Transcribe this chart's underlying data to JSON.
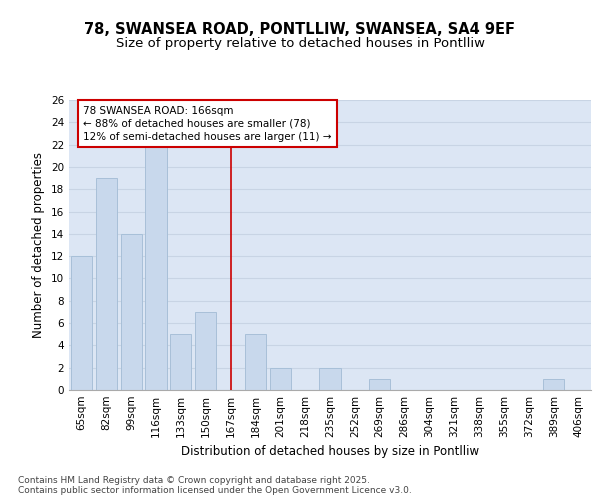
{
  "title_line1": "78, SWANSEA ROAD, PONTLLIW, SWANSEA, SA4 9EF",
  "title_line2": "Size of property relative to detached houses in Pontlliw",
  "xlabel": "Distribution of detached houses by size in Pontlliw",
  "ylabel": "Number of detached properties",
  "categories": [
    "65sqm",
    "82sqm",
    "99sqm",
    "116sqm",
    "133sqm",
    "150sqm",
    "167sqm",
    "184sqm",
    "201sqm",
    "218sqm",
    "235sqm",
    "252sqm",
    "269sqm",
    "286sqm",
    "304sqm",
    "321sqm",
    "338sqm",
    "355sqm",
    "372sqm",
    "389sqm",
    "406sqm"
  ],
  "values": [
    12,
    19,
    14,
    22,
    5,
    7,
    0,
    5,
    2,
    0,
    2,
    0,
    1,
    0,
    0,
    0,
    0,
    0,
    0,
    1,
    0
  ],
  "bar_color": "#c8d8ec",
  "bar_edgecolor": "#a8c0d8",
  "grid_color": "#c8d4e4",
  "background_color": "#dce6f4",
  "vline_color": "#cc0000",
  "annotation_text": "78 SWANSEA ROAD: 166sqm\n← 88% of detached houses are smaller (78)\n12% of semi-detached houses are larger (11) →",
  "annotation_box_edgecolor": "#cc0000",
  "annotation_box_facecolor": "#ffffff",
  "ylim": [
    0,
    26
  ],
  "yticks": [
    0,
    2,
    4,
    6,
    8,
    10,
    12,
    14,
    16,
    18,
    20,
    22,
    24,
    26
  ],
  "footer_text": "Contains HM Land Registry data © Crown copyright and database right 2025.\nContains public sector information licensed under the Open Government Licence v3.0.",
  "title_fontsize": 10.5,
  "subtitle_fontsize": 9.5,
  "axis_label_fontsize": 8.5,
  "tick_fontsize": 7.5,
  "annotation_fontsize": 7.5,
  "footer_fontsize": 6.5
}
